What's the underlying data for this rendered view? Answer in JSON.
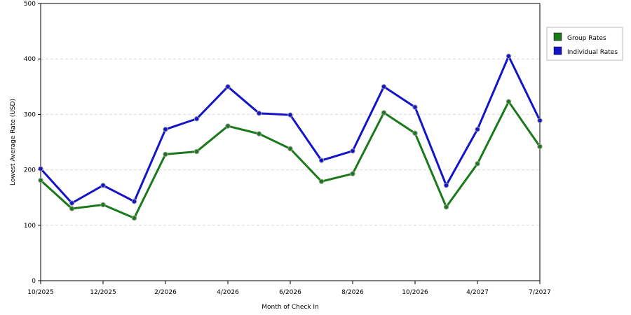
{
  "chart_data": {
    "type": "line",
    "title": "",
    "xlabel": "Month of Check In",
    "ylabel": "Lowest Average Rate (USD)",
    "ylim": [
      0,
      500
    ],
    "yticks": [
      0,
      100,
      200,
      300,
      400,
      500
    ],
    "grid": true,
    "legend_position": "right",
    "x_tick_labels": [
      "10/2025",
      "12/2025",
      "2/2026",
      "4/2026",
      "6/2026",
      "8/2026",
      "10/2026",
      "4/2027",
      "7/2027"
    ],
    "x_tick_indices": [
      0,
      2,
      4,
      6,
      8,
      10,
      12,
      14,
      16
    ],
    "series": [
      {
        "name": "Group Rates",
        "color": "#1a7a1a",
        "values": [
          181,
          130,
          137,
          113,
          228,
          233,
          279,
          265,
          238,
          179,
          193,
          303,
          266,
          133,
          211,
          323,
          242
        ]
      },
      {
        "name": "Individual Rates",
        "color": "#1414c8",
        "values": [
          202,
          140,
          172,
          143,
          273,
          292,
          350,
          302,
          299,
          217,
          234,
          350,
          313,
          172,
          273,
          405,
          289
        ]
      }
    ]
  }
}
